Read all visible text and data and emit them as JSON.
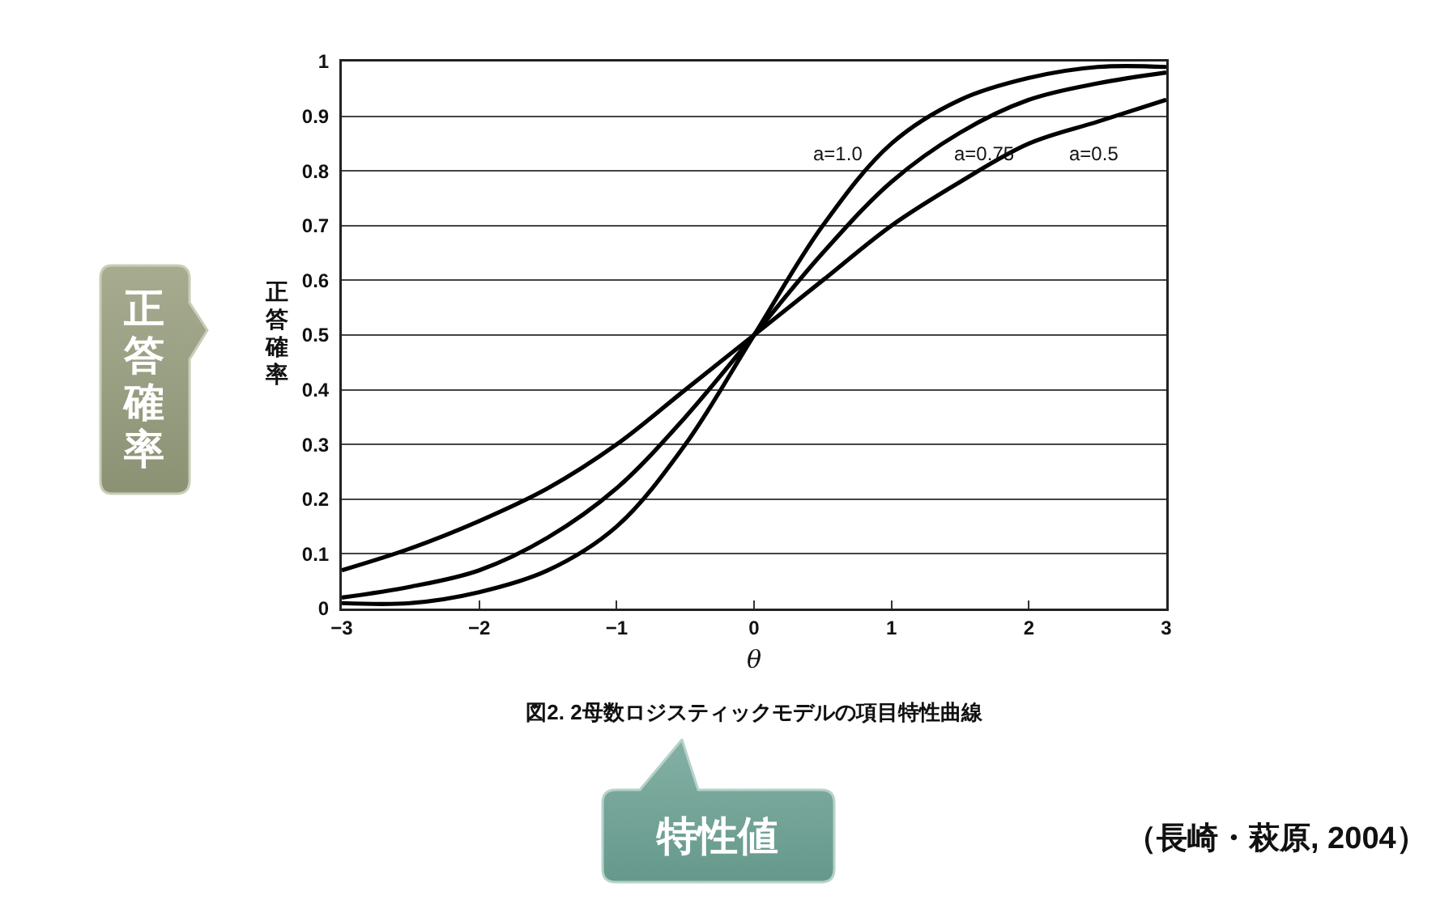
{
  "chart_data": {
    "type": "line",
    "title": "図2. 2母数ロジスティックモデルの項目特性曲線",
    "xlabel": "θ",
    "ylabel": "正答確率",
    "x": [
      -3,
      -2.5,
      -2,
      -1.5,
      -1,
      -0.5,
      0,
      0.5,
      1,
      1.5,
      2,
      2.5,
      3
    ],
    "series": [
      {
        "color": "#000000",
        "values": [
          0.01,
          0.01,
          0.03,
          0.07,
          0.15,
          0.3,
          0.5,
          0.7,
          0.85,
          0.93,
          0.97,
          0.99,
          0.99
        ]
      },
      {
        "color": "#000000",
        "values": [
          0.02,
          0.04,
          0.07,
          0.13,
          0.22,
          0.35,
          0.5,
          0.65,
          0.78,
          0.87,
          0.93,
          0.96,
          0.98
        ]
      },
      {
        "color": "#000000",
        "values": [
          0.07,
          0.11,
          0.16,
          0.22,
          0.3,
          0.4,
          0.5,
          0.6,
          0.7,
          0.78,
          0.85,
          0.89,
          0.93
        ]
      }
    ],
    "xlim": [
      -3,
      3
    ],
    "ylim": [
      0,
      1
    ],
    "xticks": [
      {
        "value": -3,
        "label": "−3"
      },
      {
        "value": -2,
        "label": "−2"
      },
      {
        "value": -1,
        "label": "−1"
      },
      0,
      1,
      2,
      3
    ],
    "yticks": [
      0,
      0.1,
      0.2,
      0.3,
      0.4,
      0.5,
      0.6,
      0.7,
      0.8,
      0.9,
      1
    ],
    "grid": "y",
    "line_style": "solid",
    "annotations": [
      "a=1.0",
      "a=0.75",
      "a=0.5",
      "正答確率",
      "特性値",
      "（長崎・萩原, 2004）"
    ]
  }
}
